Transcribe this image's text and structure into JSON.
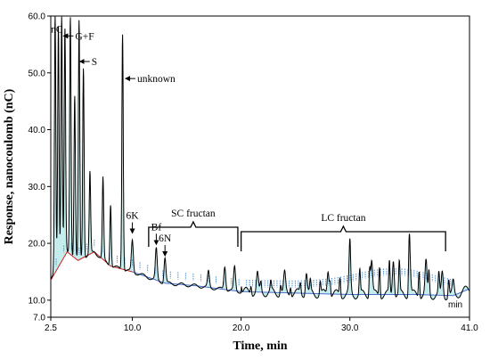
{
  "chart_data": {
    "type": "line",
    "xlabel": "Time, min",
    "ylabel": "Response, nanocoulomb (nC)",
    "x_unit_label": "min",
    "xlim": [
      2.5,
      41.0
    ],
    "ylim": [
      7.0,
      60.0
    ],
    "x_ticks": [
      2.5,
      10.0,
      20.0,
      30.0,
      41.0
    ],
    "x_tick_labels": [
      "2.5",
      "10.0",
      "20.0",
      "30.0",
      "41.0"
    ],
    "y_ticks": [
      7.0,
      10.0,
      20.0,
      30.0,
      40.0,
      50.0,
      60.0
    ],
    "y_tick_labels": [
      "7.0",
      "10.0",
      "20.0",
      "30.0",
      "40.0",
      "50.0",
      "60.0"
    ],
    "colors": {
      "trace": "#000000",
      "baseline_early": "#cc2222",
      "baseline_late": "#4a6fd1",
      "fill": "#7fd6d6",
      "integration_marks": "#4a8fd6"
    },
    "series": [
      {
        "peaks": [
          {
            "x": 2.9,
            "y": 60.0
          },
          {
            "x": 3.2,
            "y": 58.5
          },
          {
            "x": 3.5,
            "y": 60.0
          },
          {
            "x": 3.8,
            "y": 57.5
          },
          {
            "x": 4.3,
            "y": 60.0
          },
          {
            "x": 4.7,
            "y": 46.0
          },
          {
            "x": 5.1,
            "y": 59.0
          },
          {
            "x": 5.5,
            "y": 51.0
          },
          {
            "x": 6.1,
            "y": 32.5
          },
          {
            "x": 7.3,
            "y": 31.5
          },
          {
            "x": 8.0,
            "y": 27.0
          },
          {
            "x": 9.1,
            "y": 57.0
          },
          {
            "x": 10.0,
            "y": 20.5
          },
          {
            "x": 12.2,
            "y": 19.0
          },
          {
            "x": 13.0,
            "y": 17.5
          },
          {
            "x": 17.0,
            "y": 15.0
          },
          {
            "x": 18.5,
            "y": 16.0
          },
          {
            "x": 19.4,
            "y": 15.8
          },
          {
            "x": 21.5,
            "y": 14.5
          },
          {
            "x": 24.0,
            "y": 14.5
          },
          {
            "x": 26.0,
            "y": 15.0
          },
          {
            "x": 28.0,
            "y": 15.5
          },
          {
            "x": 30.0,
            "y": 16.5
          },
          {
            "x": 32.0,
            "y": 17.0
          },
          {
            "x": 34.0,
            "y": 17.5
          },
          {
            "x": 35.5,
            "y": 17.5
          },
          {
            "x": 37.0,
            "y": 16.5
          },
          {
            "x": 38.5,
            "y": 15.0
          },
          {
            "x": 39.5,
            "y": 13.0
          }
        ],
        "baseline": [
          {
            "x": 2.5,
            "y": 13.5
          },
          {
            "x": 4.0,
            "y": 18.5
          },
          {
            "x": 5.0,
            "y": 17.0
          },
          {
            "x": 6.5,
            "y": 18.5
          },
          {
            "x": 8.0,
            "y": 16.0
          },
          {
            "x": 10.0,
            "y": 15.0
          },
          {
            "x": 13.0,
            "y": 13.0
          },
          {
            "x": 16.0,
            "y": 12.5
          },
          {
            "x": 20.0,
            "y": 11.5
          },
          {
            "x": 30.0,
            "y": 11.0
          },
          {
            "x": 36.0,
            "y": 11.0
          },
          {
            "x": 39.5,
            "y": 10.8
          },
          {
            "x": 41.0,
            "y": 12.0
          }
        ]
      }
    ],
    "annotations": [
      {
        "label": "nC",
        "x": 2.9,
        "y": 59.0
      },
      {
        "label": "G+F",
        "x": 3.6,
        "y": 56.5
      },
      {
        "label": "S",
        "x": 5.1,
        "y": 52.0
      },
      {
        "label": "unknown",
        "x": 9.3,
        "y": 49.0
      },
      {
        "label": "6K",
        "x": 10.0,
        "y": 21.5
      },
      {
        "label": "Bf",
        "x": 12.2,
        "y": 19.5
      },
      {
        "label": "6N",
        "x": 13.0,
        "y": 17.5
      }
    ],
    "brackets": [
      {
        "label": "SC fructan",
        "x_start": 11.5,
        "x_end": 19.7
      },
      {
        "label": "LC fructan",
        "x_start": 20.0,
        "x_end": 38.8
      }
    ]
  }
}
